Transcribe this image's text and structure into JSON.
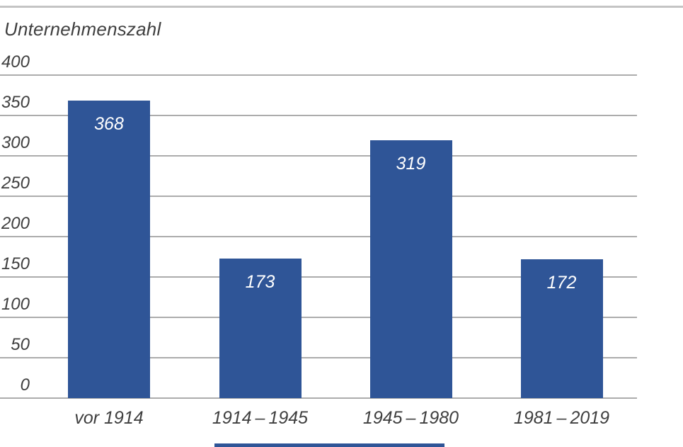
{
  "chart_data": {
    "type": "bar",
    "title": "Unternehmenszahl",
    "categories": [
      "vor 1914",
      "1914 – 1945",
      "1945 – 1980",
      "1981 – 2019"
    ],
    "values": [
      368,
      173,
      319,
      172
    ],
    "bar_labels": [
      "368",
      "173",
      "319",
      "172"
    ],
    "ylabel": "Unternehmenszahl",
    "xlabel": "",
    "ylim": [
      0,
      400
    ],
    "yticks": [
      400,
      350,
      300,
      250,
      200,
      150,
      100,
      50,
      0
    ],
    "grid": "horizontal-only",
    "legend": "none",
    "colors": {
      "bar": "#2F5597",
      "gridline": "#ACACAC",
      "top_rule": "#C4C4C4",
      "text": "#3F3F3F",
      "value_label": "#FFFFFF",
      "background": "#FFFFFF"
    }
  }
}
